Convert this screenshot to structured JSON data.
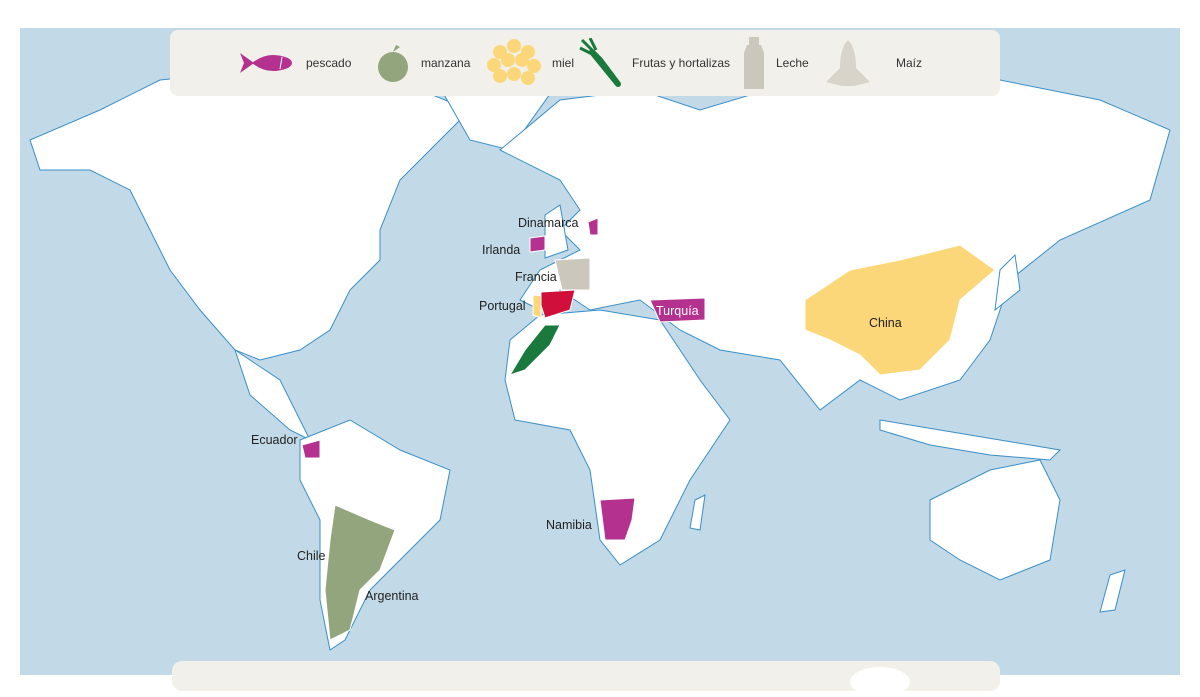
{
  "legend": [
    {
      "label": "pescado",
      "icon": "fish-icon",
      "color": "#b5318f"
    },
    {
      "label": "manzana",
      "icon": "apple-icon",
      "color": "#93a57d"
    },
    {
      "label": "miel",
      "icon": "honeycomb-icon",
      "color": "#fcd77a"
    },
    {
      "label": "Frutas y hortalizas",
      "icon": "carrot-icon",
      "color": "#1a7a3d"
    },
    {
      "label": "Leche",
      "icon": "milk-bottle-icon",
      "color": "#cbc7bd"
    },
    {
      "label": "Maíz",
      "icon": "corn-icon",
      "color": "#d8d4ca"
    }
  ],
  "colors": {
    "ocean": "#c2d9e8",
    "land": "#ffffff",
    "border": "#3a8fc8",
    "spain": "#d0103a"
  },
  "countries": [
    {
      "name": "Dinamarca",
      "category": "pescado"
    },
    {
      "name": "Irlanda",
      "category": "pescado"
    },
    {
      "name": "Francia",
      "category": "Leche"
    },
    {
      "name": "Portugal",
      "category": "miel"
    },
    {
      "name": "Turquía",
      "category": "pescado"
    },
    {
      "name": "China",
      "category": "miel"
    },
    {
      "name": "Ecuador",
      "category": "pescado"
    },
    {
      "name": "Namibia",
      "category": "pescado"
    },
    {
      "name": "Chile",
      "category": "manzana"
    },
    {
      "name": "Argentina",
      "category": "manzana"
    }
  ]
}
